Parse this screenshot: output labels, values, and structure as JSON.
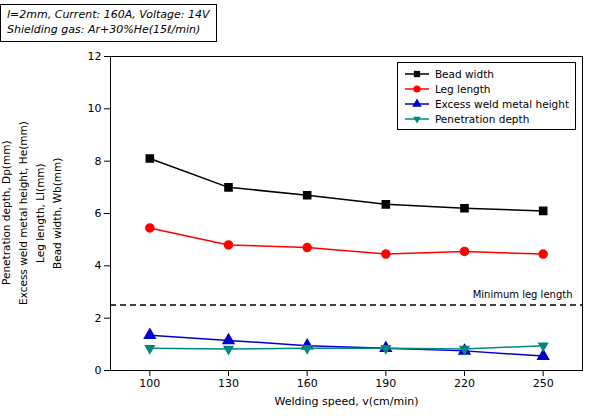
{
  "chart_data": {
    "type": "line",
    "x": [
      100,
      130,
      160,
      190,
      220,
      250
    ],
    "series": [
      {
        "name": "Bead width",
        "color": "#000000",
        "marker": "square",
        "values": [
          8.1,
          7.0,
          6.7,
          6.35,
          6.2,
          6.1
        ]
      },
      {
        "name": "Leg length",
        "color": "#ff0000",
        "marker": "circle",
        "values": [
          5.45,
          4.8,
          4.7,
          4.45,
          4.55,
          4.45
        ]
      },
      {
        "name": "Excess weld metal height",
        "color": "#0000cc",
        "marker": "triangle-up",
        "values": [
          1.35,
          1.15,
          0.95,
          0.85,
          0.75,
          0.55
        ]
      },
      {
        "name": "Penetration depth",
        "color": "#008880",
        "marker": "triangle-down",
        "values": [
          0.85,
          0.82,
          0.85,
          0.85,
          0.82,
          0.95
        ]
      }
    ],
    "hlines": [
      {
        "y": 2.5,
        "label": "Minimum leg length",
        "color": "#000000",
        "line_style": "dashed"
      }
    ],
    "annotation": [
      "l=2mm, Current: 160A, Voltage: 14V",
      "Shielding gas: Ar+30%He(15ℓ/min)"
    ],
    "xlabel": "Welding speed, v(cm/min)",
    "ylabel": [
      "Bead width, Wb(mm)",
      "Leg length, Ll(mm)",
      "Excess weld metal height, He(mm)",
      "Penetration depth, Dp(mm)"
    ],
    "xlim": [
      85,
      265
    ],
    "ylim": [
      0,
      12
    ],
    "xticks": [
      100,
      130,
      160,
      190,
      220,
      250
    ],
    "yticks": [
      0,
      2,
      4,
      6,
      8,
      10,
      12
    ],
    "grid": false,
    "legend": "upper right"
  }
}
